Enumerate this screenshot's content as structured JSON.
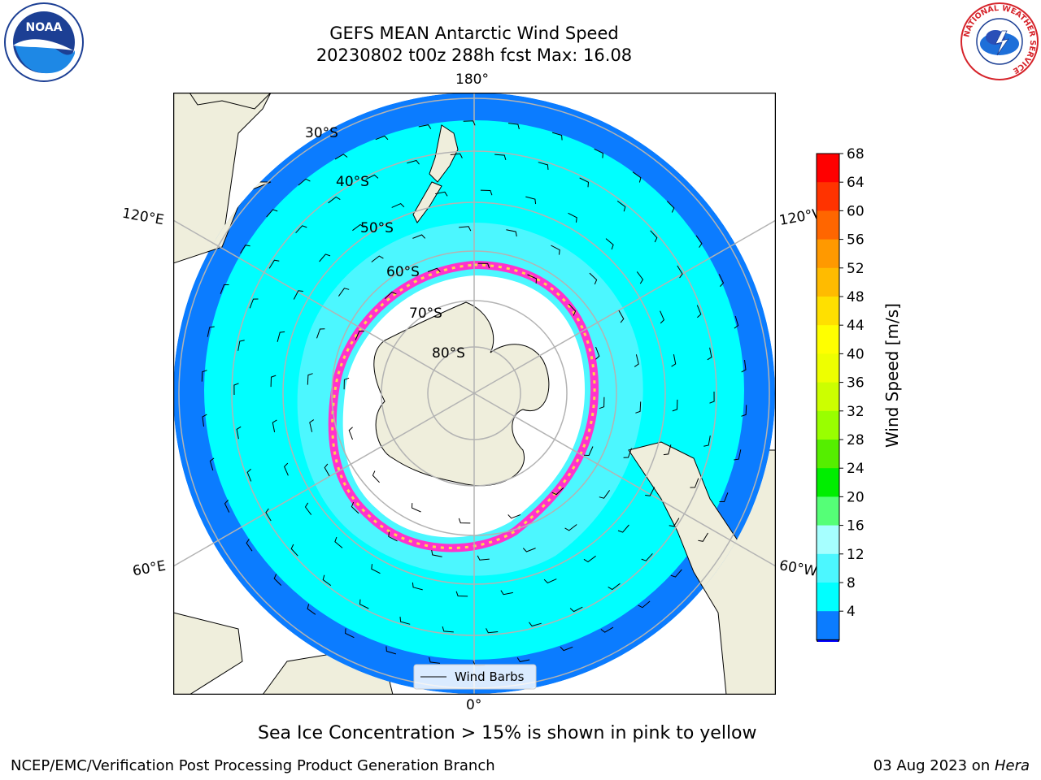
{
  "title": {
    "line1": "GEFS MEAN Antarctic Wind Speed",
    "line2": "20230802 t00z 288h fcst   Max: 16.08"
  },
  "map": {
    "projection": "south-polar-stereographic",
    "longitude_labels": [
      "180°",
      "120°E",
      "120°W",
      "60°E",
      "60°W",
      "0°"
    ],
    "latitude_labels": [
      "30°S",
      "40°S",
      "50°S",
      "60°S",
      "70°S",
      "80°S"
    ],
    "legend_label": "Wind Barbs",
    "colors": {
      "land": "#efeedc",
      "ice_shelf": "#ffffff",
      "speed_4_8": "#0b7cff",
      "speed_8_12": "#00ffff",
      "speed_12_16": "#4cf7ff",
      "speed_16_20": "#a6ffff",
      "sea_ice_edge": "#ff33cc",
      "grid": "#b3b3b3"
    }
  },
  "colorbar": {
    "title": "Wind Speed [m/s]",
    "ticks": [
      "68",
      "64",
      "60",
      "56",
      "52",
      "48",
      "44",
      "40",
      "36",
      "32",
      "28",
      "24",
      "20",
      "16",
      "12",
      "8",
      "4"
    ],
    "colors": [
      "#ff0000",
      "#ff3300",
      "#ff6600",
      "#ff9900",
      "#ffbb00",
      "#ffe000",
      "#ffff00",
      "#eeff00",
      "#ccff00",
      "#99ff00",
      "#55ee00",
      "#00ee00",
      "#55ff77",
      "#a6ffff",
      "#4cf7ff",
      "#00ffff",
      "#0b7cff"
    ],
    "extend_color": "#0000ff"
  },
  "note": "Sea Ice Concentration > 15% is shown in pink to yellow",
  "footer": {
    "left": "NCEP/EMC/Verification Post Processing Product Generation Branch",
    "date": "03 Aug 2023 on ",
    "host": "Hera"
  },
  "logos": {
    "noaa_text": "NOAA",
    "nws_ring_text": "NATIONAL WEATHER SERVICE"
  }
}
